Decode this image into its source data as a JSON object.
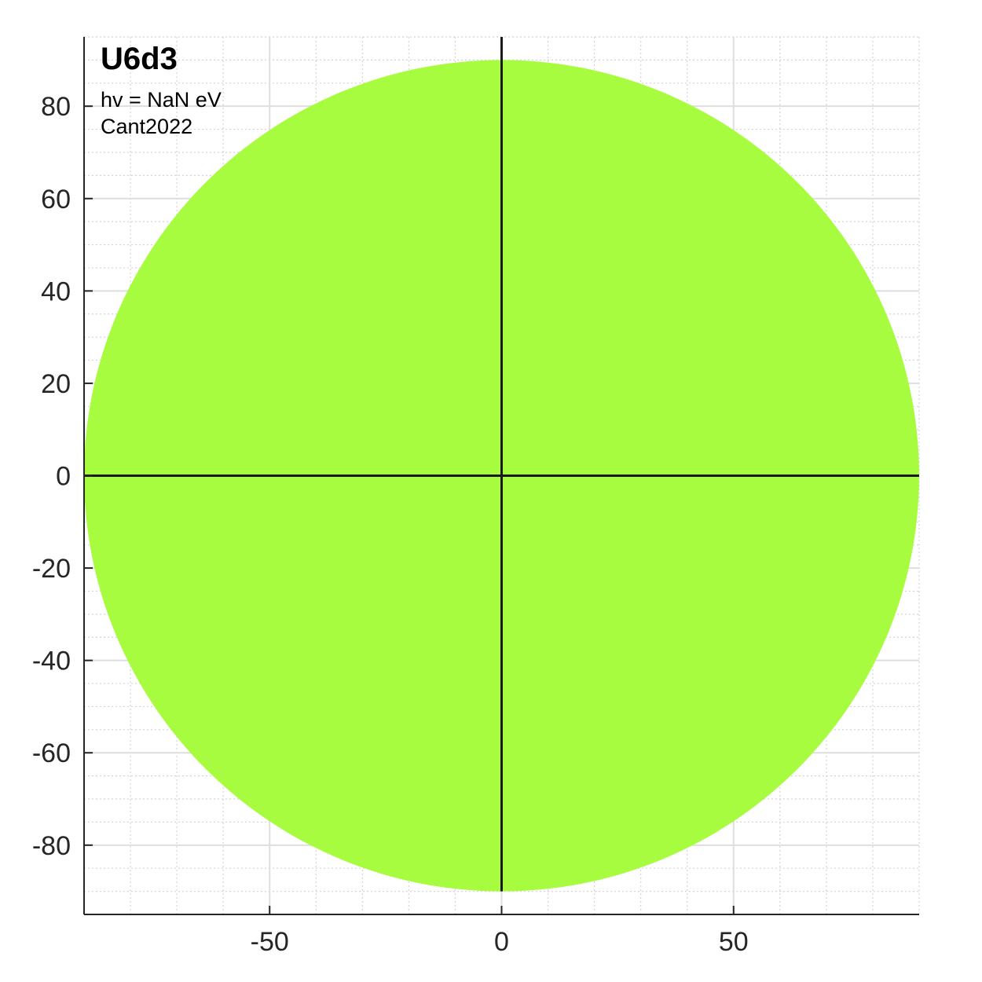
{
  "chart_data": {
    "type": "area",
    "title": "U6d3",
    "annotations": [
      "hv = NaN eV",
      "Cant2022"
    ],
    "xlabel": "",
    "ylabel": "",
    "xlim": [
      -90,
      90
    ],
    "ylim": [
      -95,
      95
    ],
    "x_ticks": [
      -50,
      0,
      50
    ],
    "y_ticks": [
      80,
      60,
      40,
      20,
      0,
      -20,
      -40,
      -60,
      -80
    ],
    "x_minor_step": 10,
    "y_minor_step": 5,
    "grid": true,
    "shape": {
      "kind": "disk",
      "center": [
        0,
        0
      ],
      "radius": 90
    },
    "fill_color": "#a8fc40",
    "crosshair": {
      "x": 0,
      "y": 0,
      "color": "#1a1a1a"
    }
  }
}
